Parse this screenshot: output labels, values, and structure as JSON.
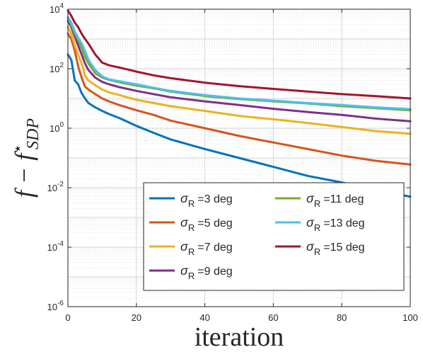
{
  "chart_data": {
    "type": "line",
    "xlabel": "iteration",
    "ylabel": {
      "main": "f − f",
      "sup": "⋆",
      "sub": "SDP"
    },
    "yscale": "log",
    "xlim": [
      0,
      100
    ],
    "ylim": [
      1e-06,
      10000
    ],
    "x_ticks": [
      0,
      20,
      40,
      60,
      80,
      100
    ],
    "y_ticks": [
      {
        "value": 1e-06,
        "base": "10",
        "exp": "-6"
      },
      {
        "value": 0.0001,
        "base": "10",
        "exp": "-4"
      },
      {
        "value": 0.01,
        "base": "10",
        "exp": "-2"
      },
      {
        "value": 1,
        "base": "10",
        "exp": "0"
      },
      {
        "value": 100,
        "base": "10",
        "exp": "2"
      },
      {
        "value": 10000,
        "base": "10",
        "exp": "4"
      }
    ],
    "grid": true,
    "legend_position": "bottom-right",
    "legend_columns": 2,
    "x": [
      0,
      1,
      2,
      3,
      4,
      5,
      6,
      8,
      10,
      12,
      15,
      20,
      25,
      30,
      40,
      50,
      60,
      70,
      80,
      90,
      100
    ],
    "series": [
      {
        "sigma": "=3 deg",
        "color": "#0072bd",
        "values": [
          300,
          200,
          40,
          30,
          15,
          10,
          7,
          5,
          3.8,
          3,
          2.2,
          1.2,
          0.7,
          0.42,
          0.2,
          0.1,
          0.05,
          0.025,
          0.015,
          0.008,
          0.005
        ]
      },
      {
        "sigma": "=5 deg",
        "color": "#d95319",
        "values": [
          1500,
          1000,
          400,
          120,
          50,
          25,
          20,
          14,
          10,
          8,
          6,
          4,
          2.8,
          1.8,
          1,
          0.55,
          0.33,
          0.2,
          0.12,
          0.08,
          0.06
        ]
      },
      {
        "sigma": "=7 deg",
        "color": "#edb120",
        "values": [
          2500,
          1500,
          600,
          300,
          150,
          60,
          40,
          28,
          20,
          16,
          13,
          9,
          7,
          5.5,
          3.8,
          2.6,
          2.0,
          1.5,
          1.1,
          0.8,
          0.65
        ]
      },
      {
        "sigma": "=9 deg",
        "color": "#7e2f8e",
        "values": [
          4000,
          2500,
          1200,
          600,
          300,
          150,
          90,
          50,
          36,
          30,
          24,
          18,
          14,
          11,
          8,
          6,
          4.5,
          3.5,
          2.8,
          2.1,
          1.7
        ]
      },
      {
        "sigma": "=11 deg",
        "color": "#77ac30",
        "values": [
          5000,
          3000,
          1500,
          900,
          500,
          250,
          150,
          70,
          50,
          42,
          35,
          27,
          22,
          17,
          12,
          9.5,
          8,
          6.8,
          5.5,
          4.7,
          4.0
        ]
      },
      {
        "sigma": "=13 deg",
        "color": "#4dbeee",
        "values": [
          5500,
          3500,
          1800,
          1100,
          700,
          400,
          200,
          90,
          55,
          44,
          38,
          30,
          23,
          18,
          13,
          10,
          8.5,
          7.0,
          6.0,
          5.0,
          4.4
        ]
      },
      {
        "sigma": "=15 deg",
        "color": "#a2142f",
        "values": [
          9000,
          6000,
          3500,
          2500,
          1500,
          1000,
          700,
          300,
          160,
          130,
          110,
          80,
          60,
          48,
          34,
          26,
          21,
          17,
          14,
          12,
          10
        ]
      }
    ],
    "legend_symbol": "σ",
    "legend_subscript": "R"
  }
}
